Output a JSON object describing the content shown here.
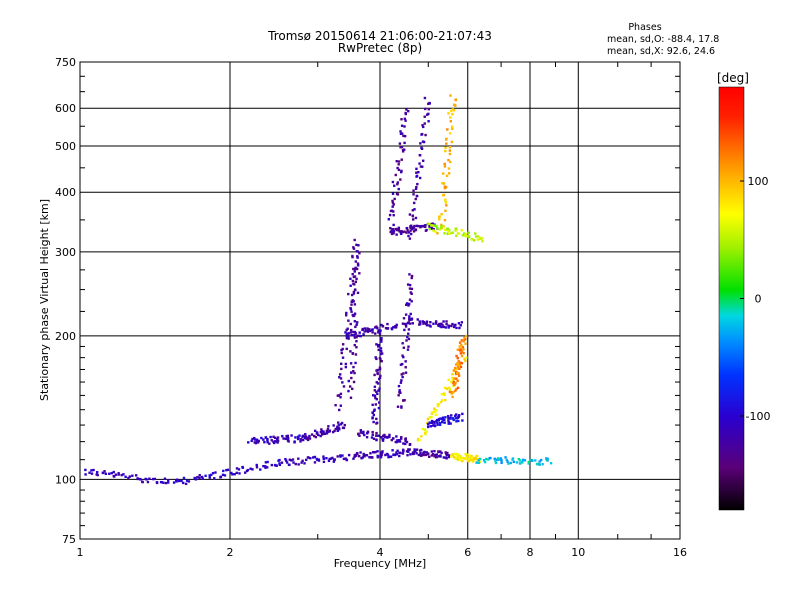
{
  "chart_data": {
    "type": "scatter",
    "title": "Tromsø 20150614 21:06:00-21:07:43",
    "subtitle": "RwPretec (8p)",
    "xlabel": "Frequency [MHz]",
    "ylabel": "Stationary phase Virtual Height [km]",
    "x_scale": "log",
    "y_scale": "log",
    "xlim": [
      1,
      16
    ],
    "ylim": [
      75,
      750
    ],
    "x_ticks": [
      "1",
      "2",
      "4",
      "6",
      "8",
      "10",
      "16"
    ],
    "y_ticks": [
      "75",
      "100",
      "200",
      "300",
      "400",
      "500",
      "600",
      "750"
    ],
    "grid": true,
    "phase_stats": {
      "title": "Phases",
      "line_o": "mean, sd,O: -88.4, 17.8",
      "line_x": "mean, sd,X:  92.6, 24.6"
    },
    "colorbar": {
      "label": "[deg]",
      "range": [
        -180,
        180
      ],
      "ticks": [
        "100",
        "0",
        "-100"
      ],
      "tick_values": [
        100,
        0,
        -100
      ]
    },
    "traces": [
      {
        "x": [
          1.02,
          1.6
        ],
        "y": [
          104,
          98
        ],
        "phase": -110
      },
      {
        "x": [
          1.6,
          2.5
        ],
        "y": [
          99,
          108
        ],
        "phase": -105
      },
      {
        "x": [
          2.5,
          3.6
        ],
        "y": [
          108,
          112
        ],
        "phase": -110
      },
      {
        "x": [
          3.6,
          4.6
        ],
        "y": [
          112,
          114
        ],
        "phase": -115
      },
      {
        "x": [
          4.6,
          5.6
        ],
        "y": [
          114,
          112
        ],
        "phase": -120
      },
      {
        "x": [
          5.6,
          6.3
        ],
        "y": [
          112,
          110
        ],
        "phase": 80
      },
      {
        "x": [
          6.3,
          8.8
        ],
        "y": [
          110,
          109
        ],
        "phase": -20
      },
      {
        "x": [
          2.2,
          2.8
        ],
        "y": [
          120,
          122
        ],
        "phase": -110
      },
      {
        "x": [
          2.8,
          3.4
        ],
        "y": [
          122,
          130
        ],
        "phase": -120
      },
      {
        "x": [
          3.3,
          3.6
        ],
        "y": [
          140,
          320
        ],
        "phase": -125
      },
      {
        "x": [
          3.5,
          3.6
        ],
        "y": [
          150,
          305
        ],
        "phase": -125
      },
      {
        "x": [
          3.4,
          4.3
        ],
        "y": [
          200,
          210
        ],
        "phase": -115
      },
      {
        "x": [
          3.6,
          4.6
        ],
        "y": [
          125,
          120
        ],
        "phase": -120
      },
      {
        "x": [
          3.9,
          4.0
        ],
        "y": [
          130,
          200
        ],
        "phase": -120
      },
      {
        "x": [
          4.4,
          4.6
        ],
        "y": [
          140,
          270
        ],
        "phase": -125
      },
      {
        "x": [
          4.5,
          5.8
        ],
        "y": [
          215,
          210
        ],
        "phase": -115
      },
      {
        "x": [
          4.2,
          4.5
        ],
        "y": [
          330,
          600
        ],
        "phase": -125
      },
      {
        "x": [
          4.6,
          5.0
        ],
        "y": [
          320,
          630
        ],
        "phase": -120
      },
      {
        "x": [
          4.2,
          5.2
        ],
        "y": [
          330,
          340
        ],
        "phase": -125
      },
      {
        "x": [
          4.8,
          5.9
        ],
        "y": [
          120,
          180
        ],
        "phase": 75
      },
      {
        "x": [
          5.3,
          5.6
        ],
        "y": [
          330,
          640
        ],
        "phase": 100
      },
      {
        "x": [
          5.0,
          6.4
        ],
        "y": [
          340,
          320
        ],
        "phase": 50
      },
      {
        "x": [
          5.6,
          5.9
        ],
        "y": [
          150,
          200
        ],
        "phase": 120
      },
      {
        "x": [
          5.0,
          5.8
        ],
        "y": [
          130,
          135
        ],
        "phase": -95
      }
    ]
  }
}
